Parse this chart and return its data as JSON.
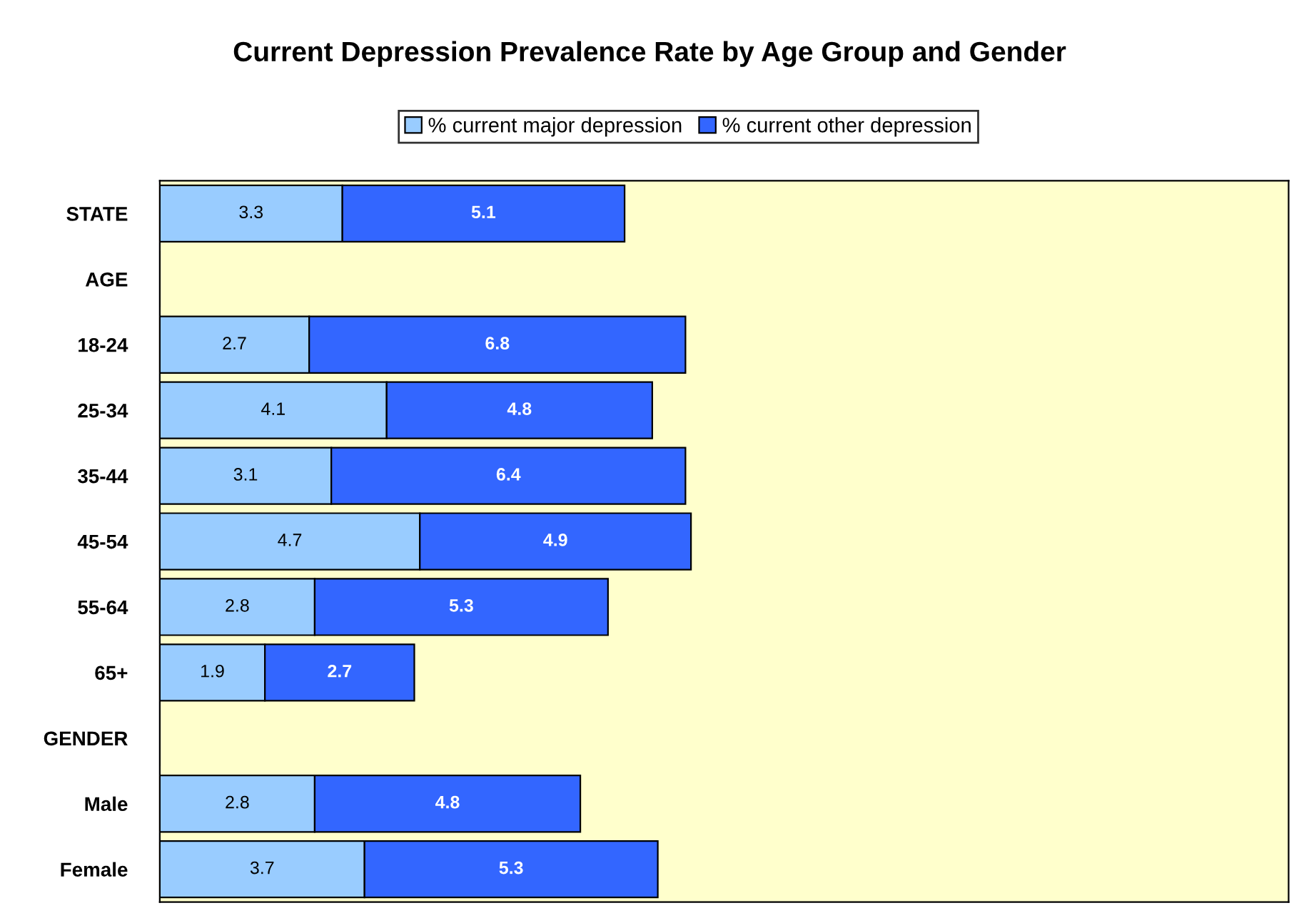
{
  "chart_data": {
    "type": "bar",
    "title": "Current Depression Prevalence Rate by Age Group and Gender",
    "orientation": "horizontal",
    "stacked": true,
    "categories": [
      "STATE",
      "AGE",
      "18-24",
      "25-34",
      "35-44",
      "45-54",
      "55-64",
      "65+",
      "GENDER",
      "Male",
      "Female"
    ],
    "series": [
      {
        "name": "% current major depression",
        "color": "#99ccff",
        "values": [
          3.3,
          null,
          2.7,
          4.1,
          3.1,
          4.7,
          2.8,
          1.9,
          null,
          2.8,
          3.7
        ]
      },
      {
        "name": "% current other depression",
        "color": "#3366ff",
        "values": [
          5.1,
          null,
          6.8,
          4.8,
          6.4,
          4.9,
          5.3,
          2.7,
          null,
          4.8,
          5.3
        ]
      }
    ],
    "xlim": [
      0,
      20.4
    ],
    "tick_labels": "y",
    "data_labels": true,
    "legend": "top",
    "grid": false
  }
}
